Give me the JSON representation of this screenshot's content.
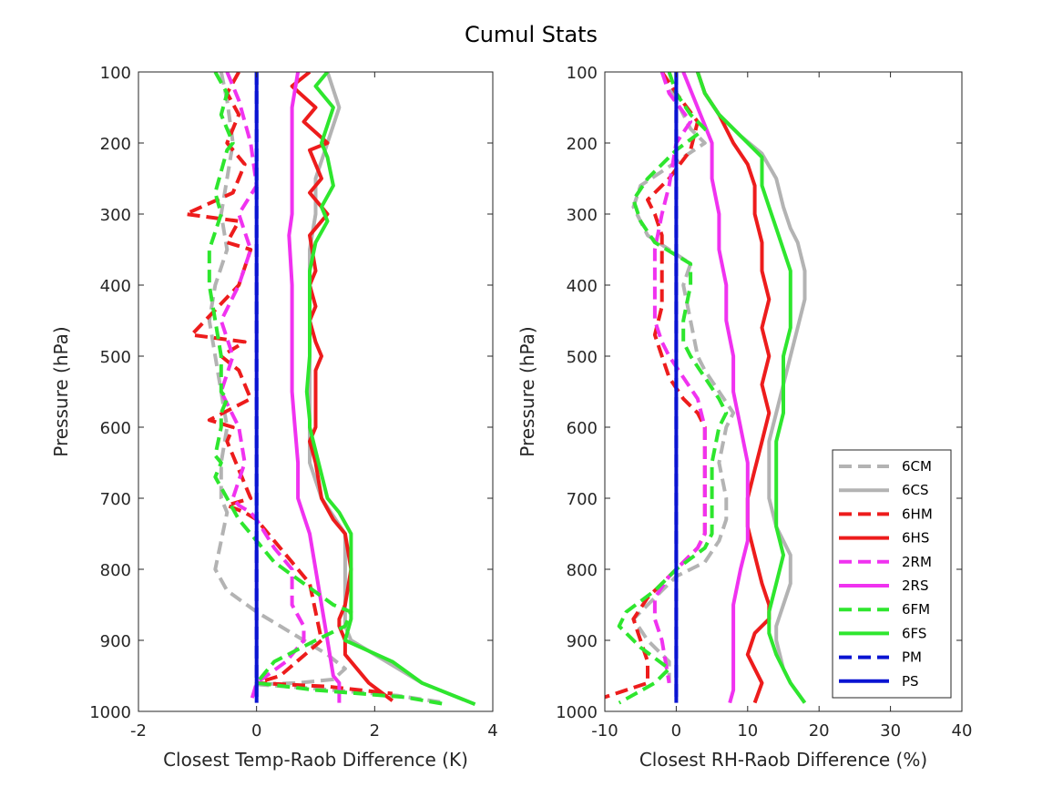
{
  "figure_title": "Cumul Stats",
  "colors": {
    "gray": "#b3b3b3",
    "red": "#ed1c1c",
    "magenta": "#f032f0",
    "green": "#2ee62e",
    "blue": "#0a14d2"
  },
  "chart_data": [
    {
      "type": "line",
      "xlabel": "Closest Temp-Raob Difference (K)",
      "ylabel": "Pressure (hPa)",
      "xlim": [
        -2,
        4
      ],
      "ylim": [
        100,
        1000
      ],
      "y_reversed": true,
      "xticks": [
        -2,
        0,
        2,
        4
      ],
      "yticks": [
        100,
        200,
        300,
        400,
        500,
        600,
        700,
        800,
        900,
        1000
      ],
      "grid": false,
      "series": [
        {
          "name": "6CM",
          "color": "gray",
          "dash": true,
          "x": [
            -0.6,
            -0.5,
            -0.4,
            -0.5,
            -0.6,
            -0.5,
            -0.7,
            -0.8,
            -0.7,
            -0.6,
            -0.5,
            -0.6,
            -0.6,
            -0.5,
            -0.6,
            -0.7,
            -0.5,
            0.0,
            0.4,
            0.8,
            1.2,
            1.5,
            1.3,
            0.7,
            0.0,
            1.0,
            2.4,
            3.2
          ],
          "y": [
            100,
            140,
            200,
            250,
            300,
            350,
            400,
            450,
            500,
            550,
            600,
            650,
            700,
            720,
            760,
            800,
            830,
            860,
            880,
            900,
            920,
            940,
            955,
            960,
            962,
            968,
            978,
            988
          ]
        },
        {
          "name": "6CS",
          "color": "gray",
          "dash": false,
          "x": [
            1.2,
            1.4,
            1.2,
            1.0,
            1.0,
            0.9,
            0.9,
            0.9,
            0.9,
            0.9,
            0.9,
            0.9,
            1.1,
            1.3,
            1.5,
            1.5,
            1.5,
            1.5,
            1.6,
            2.2,
            2.8,
            3.7
          ],
          "y": [
            100,
            150,
            200,
            250,
            300,
            350,
            400,
            450,
            500,
            550,
            600,
            650,
            700,
            725,
            750,
            800,
            850,
            880,
            900,
            930,
            960,
            990
          ]
        },
        {
          "name": "6HM",
          "color": "red",
          "dash": true,
          "x": [
            -0.3,
            -0.5,
            -0.3,
            -0.5,
            -0.2,
            -0.4,
            -1.2,
            -0.3,
            -0.5,
            -0.1,
            -0.3,
            -1.1,
            -0.2,
            -0.6,
            -0.3,
            -0.1,
            -0.8,
            -0.4,
            -0.5,
            -0.1,
            -0.5,
            -0.2,
            0.0,
            0.3,
            0.6,
            0.9,
            1.1,
            0.4,
            0.0,
            1.2,
            2.3
          ],
          "y": [
            100,
            130,
            160,
            200,
            230,
            270,
            300,
            310,
            340,
            350,
            400,
            470,
            480,
            500,
            520,
            560,
            590,
            600,
            620,
            700,
            710,
            720,
            730,
            760,
            790,
            820,
            900,
            950,
            960,
            965,
            975
          ]
        },
        {
          "name": "6HS",
          "color": "red",
          "dash": false,
          "x": [
            0.9,
            0.6,
            1.0,
            0.8,
            1.2,
            0.9,
            1.1,
            0.9,
            1.2,
            0.9,
            1.0,
            0.9,
            1.0,
            0.9,
            1.0,
            1.1,
            1.0,
            1.0,
            1.0,
            1.0,
            0.9,
            1.0,
            1.1,
            1.3,
            1.5,
            1.6,
            1.5,
            1.4,
            1.4,
            1.5,
            1.5,
            1.9,
            2.3
          ],
          "y": [
            100,
            120,
            150,
            170,
            200,
            210,
            250,
            270,
            300,
            330,
            380,
            400,
            430,
            450,
            480,
            500,
            520,
            550,
            580,
            600,
            620,
            650,
            700,
            730,
            750,
            800,
            850,
            870,
            880,
            900,
            920,
            960,
            985
          ]
        },
        {
          "name": "2RM",
          "color": "magenta",
          "dash": true,
          "x": [
            -0.5,
            -0.3,
            -0.1,
            0.0,
            -0.3,
            -0.1,
            -0.3,
            -0.6,
            -0.4,
            -0.6,
            -0.3,
            -0.2,
            -0.4,
            -0.3,
            -0.1,
            0.0,
            0.3,
            0.6,
            0.6,
            0.8,
            0.8,
            0.5,
            0.0,
            -0.1
          ],
          "y": [
            100,
            140,
            200,
            260,
            300,
            350,
            400,
            450,
            500,
            550,
            600,
            650,
            700,
            710,
            720,
            730,
            770,
            800,
            850,
            880,
            900,
            930,
            960,
            988
          ]
        },
        {
          "name": "2RS",
          "color": "magenta",
          "dash": false,
          "x": [
            0.7,
            0.6,
            0.6,
            0.6,
            0.6,
            0.55,
            0.6,
            0.6,
            0.6,
            0.6,
            0.65,
            0.7,
            0.7,
            0.9,
            1.0,
            1.1,
            1.2,
            1.3,
            1.4,
            1.4
          ],
          "y": [
            100,
            150,
            200,
            250,
            300,
            330,
            400,
            450,
            500,
            550,
            600,
            650,
            700,
            750,
            800,
            850,
            900,
            950,
            960,
            988
          ]
        },
        {
          "name": "6FM",
          "color": "green",
          "dash": true,
          "x": [
            -0.7,
            -0.5,
            -0.6,
            -0.4,
            -0.5,
            -0.7,
            -0.6,
            -0.8,
            -0.8,
            -0.7,
            -0.6,
            -0.6,
            -0.5,
            -0.6,
            -0.6,
            -0.7,
            -0.6,
            -0.7,
            -0.5,
            -0.3,
            0.0,
            0.3,
            0.8,
            1.3,
            1.6,
            1.5,
            1.0,
            0.3,
            0.0,
            1.0,
            2.5,
            3.2
          ],
          "y": [
            100,
            130,
            160,
            200,
            210,
            270,
            300,
            350,
            400,
            450,
            500,
            550,
            560,
            580,
            600,
            640,
            650,
            670,
            700,
            730,
            760,
            790,
            820,
            850,
            860,
            880,
            900,
            930,
            960,
            970,
            980,
            990
          ]
        },
        {
          "name": "6FS",
          "color": "green",
          "dash": false,
          "x": [
            1.2,
            1.0,
            1.3,
            1.1,
            1.2,
            1.3,
            1.1,
            1.2,
            1.0,
            0.9,
            0.9,
            0.9,
            0.9,
            0.85,
            0.9,
            0.9,
            1.2,
            1.4,
            1.6,
            1.6,
            1.6,
            1.6,
            1.5,
            2.3,
            2.8,
            3.7
          ],
          "y": [
            100,
            120,
            150,
            200,
            220,
            260,
            290,
            310,
            340,
            380,
            420,
            470,
            500,
            550,
            590,
            600,
            700,
            720,
            750,
            800,
            850,
            870,
            900,
            930,
            960,
            990
          ]
        },
        {
          "name": "PM",
          "color": "blue",
          "dash": true,
          "x": [
            0,
            0
          ],
          "y": [
            100,
            988
          ]
        },
        {
          "name": "PS",
          "color": "blue",
          "dash": false,
          "x": [
            0,
            0
          ],
          "y": [
            100,
            988
          ]
        }
      ]
    },
    {
      "type": "line",
      "xlabel": "Closest RH-Raob Difference (%)",
      "ylabel": "Pressure (hPa)",
      "xlim": [
        -10,
        40
      ],
      "ylim": [
        100,
        1000
      ],
      "y_reversed": true,
      "xticks": [
        -10,
        0,
        10,
        20,
        30,
        40
      ],
      "yticks": [
        100,
        200,
        300,
        400,
        500,
        600,
        700,
        800,
        900,
        1000
      ],
      "grid": false,
      "legend": {
        "position": "bottom-right",
        "entries": [
          "6CM",
          "6CS",
          "6HM",
          "6HS",
          "2RM",
          "2RS",
          "6FM",
          "6FS",
          "PM",
          "PS"
        ]
      },
      "series": [
        {
          "name": "6CM",
          "color": "gray",
          "dash": true,
          "x": [
            -2,
            0,
            2,
            4,
            1,
            -5,
            -6,
            -4,
            2,
            1,
            2,
            3,
            4,
            6,
            8,
            7,
            6,
            7,
            7,
            6,
            4,
            0,
            -3,
            -6,
            -4,
            -1,
            -1
          ],
          "y": [
            100,
            140,
            180,
            200,
            220,
            260,
            290,
            330,
            370,
            400,
            450,
            500,
            520,
            550,
            580,
            600,
            650,
            700,
            730,
            760,
            790,
            810,
            840,
            870,
            900,
            930,
            960
          ]
        },
        {
          "name": "6CS",
          "color": "gray",
          "dash": false,
          "x": [
            3,
            4,
            6,
            9,
            12,
            14,
            15,
            16,
            17,
            18,
            18,
            17,
            16,
            15,
            14,
            13,
            13,
            13,
            14,
            16,
            16,
            15,
            14,
            14,
            15,
            16,
            18
          ],
          "y": [
            100,
            130,
            160,
            190,
            215,
            250,
            290,
            320,
            340,
            380,
            420,
            460,
            500,
            540,
            580,
            620,
            660,
            700,
            740,
            780,
            820,
            850,
            880,
            900,
            940,
            960,
            988
          ]
        },
        {
          "name": "6HM",
          "color": "red",
          "dash": true,
          "x": [
            -2,
            0,
            3,
            2,
            -1,
            -4,
            -3,
            -2,
            -2,
            -2,
            -3,
            -2,
            -1,
            1,
            3,
            4,
            4,
            4,
            4,
            3,
            1,
            -1,
            -4,
            -6,
            -5,
            -4,
            -4,
            -10
          ],
          "y": [
            100,
            130,
            170,
            210,
            250,
            280,
            300,
            330,
            380,
            430,
            470,
            500,
            530,
            560,
            580,
            600,
            650,
            700,
            750,
            770,
            790,
            810,
            840,
            870,
            900,
            930,
            960,
            980
          ]
        },
        {
          "name": "6HS",
          "color": "red",
          "dash": false,
          "x": [
            3,
            4,
            6,
            8,
            10,
            11,
            11,
            12,
            12,
            13,
            12,
            13,
            12,
            13,
            12,
            11,
            10,
            10,
            11,
            12,
            13,
            13,
            11,
            10,
            11,
            12,
            11
          ],
          "y": [
            100,
            130,
            160,
            200,
            230,
            260,
            300,
            340,
            380,
            420,
            460,
            500,
            540,
            580,
            620,
            660,
            700,
            740,
            780,
            820,
            850,
            870,
            890,
            920,
            940,
            960,
            988
          ]
        },
        {
          "name": "2RM",
          "color": "magenta",
          "dash": true,
          "x": [
            -2,
            -1,
            2,
            0,
            -1,
            -2,
            -3,
            -3,
            -3,
            -2,
            -1,
            1,
            3,
            4,
            4,
            4,
            4,
            3,
            1,
            -1,
            -3,
            -3,
            -2,
            -1
          ],
          "y": [
            100,
            130,
            170,
            200,
            260,
            300,
            350,
            400,
            450,
            480,
            500,
            530,
            560,
            600,
            650,
            700,
            750,
            770,
            790,
            810,
            840,
            870,
            900,
            960
          ]
        },
        {
          "name": "2RS",
          "color": "magenta",
          "dash": false,
          "x": [
            1,
            3,
            5,
            5,
            6,
            6,
            7,
            7,
            8,
            8,
            9,
            10,
            10,
            10,
            10,
            9,
            8,
            8,
            8,
            8,
            8,
            8,
            7.5
          ],
          "y": [
            100,
            150,
            200,
            250,
            300,
            350,
            400,
            450,
            500,
            550,
            600,
            650,
            700,
            730,
            760,
            800,
            850,
            880,
            900,
            930,
            950,
            970,
            988
          ]
        },
        {
          "name": "6FM",
          "color": "green",
          "dash": true,
          "x": [
            -1,
            0,
            2,
            4,
            0,
            -4,
            -6,
            -5,
            -3,
            2,
            2,
            1,
            1,
            2,
            4,
            6,
            7,
            6,
            5,
            5,
            5,
            4,
            0,
            -3,
            -7,
            -8,
            -5,
            -1,
            -3,
            -8
          ],
          "y": [
            100,
            130,
            160,
            180,
            210,
            250,
            280,
            310,
            340,
            370,
            400,
            450,
            480,
            500,
            530,
            560,
            580,
            600,
            650,
            700,
            750,
            770,
            800,
            830,
            860,
            880,
            910,
            940,
            960,
            988
          ]
        },
        {
          "name": "6FS",
          "color": "green",
          "dash": false,
          "x": [
            3,
            4,
            6,
            9,
            12,
            12,
            13,
            14,
            15,
            16,
            16,
            16,
            15,
            15,
            15,
            14,
            14,
            14,
            14,
            15,
            14,
            13,
            13,
            14,
            16,
            18
          ],
          "y": [
            100,
            130,
            160,
            190,
            220,
            260,
            290,
            320,
            350,
            380,
            420,
            460,
            500,
            540,
            580,
            620,
            660,
            700,
            740,
            780,
            820,
            860,
            890,
            920,
            960,
            988
          ]
        },
        {
          "name": "PM",
          "color": "blue",
          "dash": true,
          "x": [
            0,
            0
          ],
          "y": [
            100,
            988
          ]
        },
        {
          "name": "PS",
          "color": "blue",
          "dash": false,
          "x": [
            0,
            0
          ],
          "y": [
            100,
            988
          ]
        }
      ]
    }
  ]
}
